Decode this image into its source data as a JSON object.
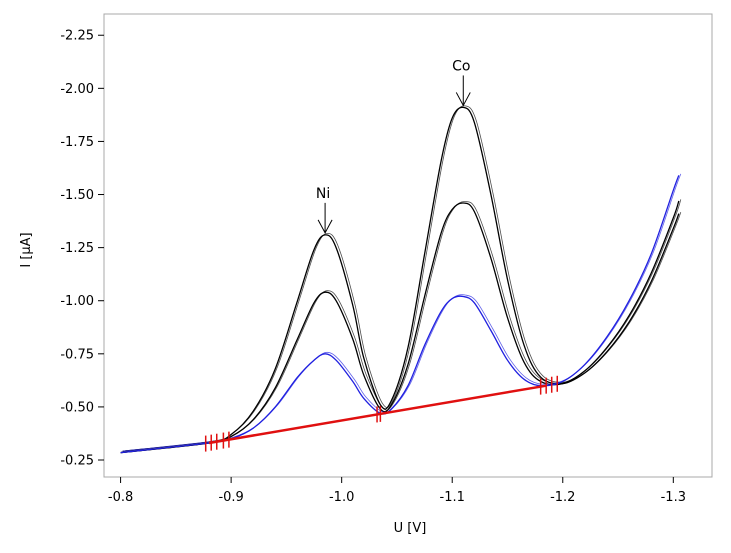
{
  "chart_data": {
    "type": "line",
    "title": "",
    "xlabel": "U [V]",
    "ylabel": "I [µA]",
    "xlim": [
      -0.785,
      -1.335
    ],
    "ylim": [
      -0.17,
      -2.35
    ],
    "x_ticks": [
      -0.8,
      -0.9,
      -1.0,
      -1.1,
      -1.2,
      -1.3
    ],
    "x_tick_labels": [
      "-0.8",
      "-0.9",
      "-1.0",
      "-1.1",
      "-1.2",
      "-1.3"
    ],
    "y_ticks": [
      -0.25,
      -0.5,
      -0.75,
      -1.0,
      -1.25,
      -1.5,
      -1.75,
      -2.0,
      -2.25
    ],
    "y_tick_labels": [
      "-0.25",
      "-0.50",
      "-0.75",
      "-1.00",
      "-1.25",
      "-1.50",
      "-1.75",
      "-2.00",
      "-2.25"
    ],
    "grid": false,
    "legend": "none",
    "series": [
      {
        "color": "#000000",
        "points": [
          [
            -0.8,
            -0.285
          ],
          [
            -0.88,
            -0.33
          ],
          [
            -0.9,
            -0.37
          ],
          [
            -0.92,
            -0.48
          ],
          [
            -0.94,
            -0.68
          ],
          [
            -0.96,
            -1.0
          ],
          [
            -0.975,
            -1.24
          ],
          [
            -0.985,
            -1.31
          ],
          [
            -0.995,
            -1.25
          ],
          [
            -1.01,
            -0.98
          ],
          [
            -1.02,
            -0.73
          ],
          [
            -1.035,
            -0.51
          ],
          [
            -1.045,
            -0.53
          ],
          [
            -1.06,
            -0.78
          ],
          [
            -1.075,
            -1.22
          ],
          [
            -1.09,
            -1.66
          ],
          [
            -1.1,
            -1.86
          ],
          [
            -1.11,
            -1.91
          ],
          [
            -1.12,
            -1.84
          ],
          [
            -1.135,
            -1.5
          ],
          [
            -1.15,
            -1.1
          ],
          [
            -1.165,
            -0.79
          ],
          [
            -1.18,
            -0.64
          ],
          [
            -1.2,
            -0.61
          ],
          [
            -1.22,
            -0.66
          ],
          [
            -1.24,
            -0.76
          ],
          [
            -1.26,
            -0.9
          ],
          [
            -1.28,
            -1.09
          ],
          [
            -1.3,
            -1.34
          ],
          [
            -1.305,
            -1.41
          ]
        ]
      },
      {
        "color": "#000000",
        "points": [
          [
            -0.8,
            -0.285
          ],
          [
            -0.88,
            -0.33
          ],
          [
            -0.9,
            -0.36
          ],
          [
            -0.92,
            -0.44
          ],
          [
            -0.94,
            -0.59
          ],
          [
            -0.96,
            -0.82
          ],
          [
            -0.975,
            -0.99
          ],
          [
            -0.985,
            -1.04
          ],
          [
            -0.995,
            -1.0
          ],
          [
            -1.01,
            -0.82
          ],
          [
            -1.02,
            -0.65
          ],
          [
            -1.035,
            -0.49
          ],
          [
            -1.045,
            -0.51
          ],
          [
            -1.06,
            -0.7
          ],
          [
            -1.075,
            -1.02
          ],
          [
            -1.09,
            -1.32
          ],
          [
            -1.1,
            -1.43
          ],
          [
            -1.11,
            -1.46
          ],
          [
            -1.12,
            -1.42
          ],
          [
            -1.135,
            -1.2
          ],
          [
            -1.15,
            -0.92
          ],
          [
            -1.165,
            -0.71
          ],
          [
            -1.18,
            -0.62
          ],
          [
            -1.2,
            -0.61
          ],
          [
            -1.22,
            -0.67
          ],
          [
            -1.24,
            -0.78
          ],
          [
            -1.26,
            -0.93
          ],
          [
            -1.28,
            -1.13
          ],
          [
            -1.3,
            -1.39
          ],
          [
            -1.305,
            -1.47
          ]
        ]
      },
      {
        "color": "#2020e0",
        "points": [
          [
            -0.8,
            -0.285
          ],
          [
            -0.88,
            -0.33
          ],
          [
            -0.9,
            -0.35
          ],
          [
            -0.92,
            -0.4
          ],
          [
            -0.94,
            -0.5
          ],
          [
            -0.96,
            -0.64
          ],
          [
            -0.975,
            -0.72
          ],
          [
            -0.985,
            -0.75
          ],
          [
            -0.995,
            -0.72
          ],
          [
            -1.01,
            -0.62
          ],
          [
            -1.02,
            -0.54
          ],
          [
            -1.035,
            -0.47
          ],
          [
            -1.045,
            -0.49
          ],
          [
            -1.06,
            -0.6
          ],
          [
            -1.075,
            -0.79
          ],
          [
            -1.09,
            -0.95
          ],
          [
            -1.1,
            -1.01
          ],
          [
            -1.11,
            -1.02
          ],
          [
            -1.12,
            -0.99
          ],
          [
            -1.135,
            -0.86
          ],
          [
            -1.15,
            -0.72
          ],
          [
            -1.165,
            -0.63
          ],
          [
            -1.18,
            -0.6
          ],
          [
            -1.2,
            -0.62
          ],
          [
            -1.22,
            -0.7
          ],
          [
            -1.24,
            -0.83
          ],
          [
            -1.26,
            -1.0
          ],
          [
            -1.28,
            -1.22
          ],
          [
            -1.3,
            -1.52
          ],
          [
            -1.305,
            -1.59
          ]
        ]
      }
    ],
    "baseline": {
      "color": "#e01010",
      "x": [
        -0.88,
        -1.185
      ],
      "y": [
        -0.33,
        -0.6
      ]
    },
    "baseline_markers": [
      -0.877,
      -0.882,
      -0.887,
      -0.893,
      -0.898,
      -1.032,
      -1.035,
      -1.18,
      -1.185,
      -1.19,
      -1.195
    ],
    "annotations": [
      {
        "text": "Ni",
        "x": -0.985,
        "y": -1.31
      },
      {
        "text": "Co",
        "x": -1.11,
        "y": -1.91
      }
    ]
  }
}
